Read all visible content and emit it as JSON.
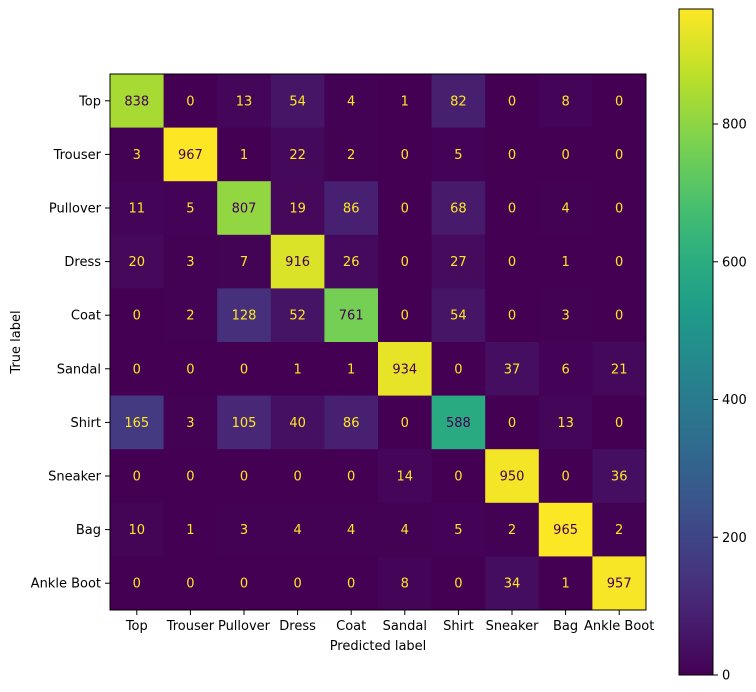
{
  "chart_data": {
    "type": "heatmap",
    "title": "",
    "xlabel": "Predicted label",
    "ylabel": "True label",
    "x_categories": [
      "Top",
      "Trouser",
      "Pullover",
      "Dress",
      "Coat",
      "Sandal",
      "Shirt",
      "Sneaker",
      "Bag",
      "Ankle Boot"
    ],
    "y_categories": [
      "Top",
      "Trouser",
      "Pullover",
      "Dress",
      "Coat",
      "Sandal",
      "Shirt",
      "Sneaker",
      "Bag",
      "Ankle Boot"
    ],
    "values": [
      [
        838,
        0,
        13,
        54,
        4,
        1,
        82,
        0,
        8,
        0
      ],
      [
        3,
        967,
        1,
        22,
        2,
        0,
        5,
        0,
        0,
        0
      ],
      [
        11,
        5,
        807,
        19,
        86,
        0,
        68,
        0,
        4,
        0
      ],
      [
        20,
        3,
        7,
        916,
        26,
        0,
        27,
        0,
        1,
        0
      ],
      [
        0,
        2,
        128,
        52,
        761,
        0,
        54,
        0,
        3,
        0
      ],
      [
        0,
        0,
        0,
        1,
        1,
        934,
        0,
        37,
        6,
        21
      ],
      [
        165,
        3,
        105,
        40,
        86,
        0,
        588,
        0,
        13,
        0
      ],
      [
        0,
        0,
        0,
        0,
        0,
        14,
        0,
        950,
        0,
        36
      ],
      [
        10,
        1,
        3,
        4,
        4,
        4,
        5,
        2,
        965,
        2
      ],
      [
        0,
        0,
        0,
        0,
        0,
        8,
        0,
        34,
        1,
        957
      ]
    ],
    "colormap": "viridis",
    "color_range": [
      0,
      967
    ],
    "colorbar_ticks": [
      0,
      200,
      400,
      600,
      800
    ],
    "colorbar_tick_labels": [
      "0",
      "200",
      "400",
      "600",
      "800"
    ],
    "grid": false,
    "legend": "colorbar-right",
    "text_color_light": "#fde725",
    "text_color_dark": "#440154"
  }
}
